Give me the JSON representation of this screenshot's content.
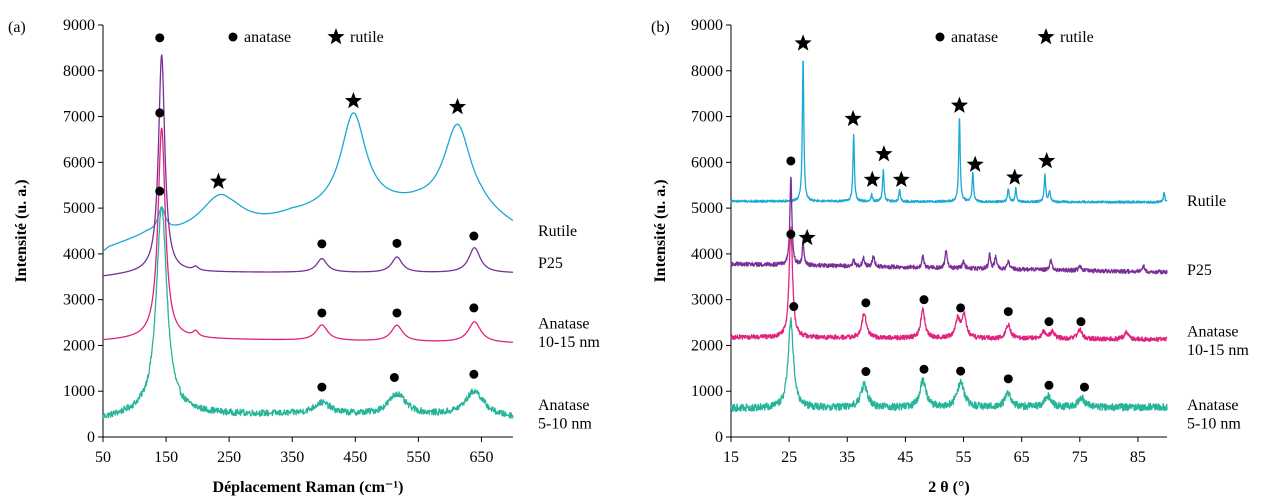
{
  "chart_data": [
    {
      "panel_label": "(a)",
      "type": "line",
      "xlabel": "Déplacement Raman (cm⁻¹)",
      "ylabel": "Intensité (u. a.)",
      "xlim": [
        50,
        700
      ],
      "ylim": [
        0,
        9000
      ],
      "xticks": [
        50,
        150,
        250,
        350,
        450,
        550,
        650
      ],
      "yticks": [
        0,
        1000,
        2000,
        3000,
        4000,
        5000,
        6000,
        7000,
        8000,
        9000
      ],
      "legend": {
        "position": "top",
        "entries": [
          {
            "marker": "circle",
            "label": "anatase"
          },
          {
            "marker": "star",
            "label": "rutile"
          }
        ]
      },
      "series": [
        {
          "name": "Rutile",
          "color": "#1aa8d6",
          "label_at_y": 4500,
          "baseline": [
            [
              50,
              4000
            ],
            [
              60,
              4100
            ],
            [
              120,
              4350
            ],
            [
              250,
              4250
            ],
            [
              350,
              4750
            ],
            [
              450,
              4950
            ],
            [
              550,
              5000
            ],
            [
              650,
              4850
            ],
            [
              700,
              4550
            ]
          ],
          "peaks": [
            [
              143,
              500,
              7
            ],
            [
              238,
              1000,
              42
            ],
            [
              447,
              2050,
              24
            ],
            [
              612,
              1870,
              26
            ]
          ]
        },
        {
          "name": "P25",
          "color": "#7a2e98",
          "label_at_y": 3800,
          "baseline": [
            [
              50,
              3500
            ],
            [
              120,
              3600
            ],
            [
              700,
              3580
            ]
          ],
          "peaks": [
            [
              143,
              4750,
              6
            ],
            [
              197,
              80,
              5
            ],
            [
              397,
              300,
              10
            ],
            [
              516,
              340,
              10
            ],
            [
              639,
              550,
              11
            ]
          ]
        },
        {
          "name": "Anatase 10-15 nm",
          "color": "#e0237e",
          "label_at_y": [
            2480,
            2080
          ],
          "baseline": [
            [
              50,
              2100
            ],
            [
              120,
              2150
            ],
            [
              700,
              2050
            ]
          ],
          "peaks": [
            [
              143,
              4600,
              7
            ],
            [
              197,
              120,
              5
            ],
            [
              397,
              340,
              11
            ],
            [
              516,
              350,
              11
            ],
            [
              639,
              450,
              12
            ]
          ]
        },
        {
          "name": "Anatase 5-10 nm",
          "color": "#26b59a",
          "label_at_y": [
            700,
            300
          ],
          "baseline": [
            [
              50,
              400
            ],
            [
              120,
              550
            ],
            [
              250,
              500
            ],
            [
              550,
              480
            ],
            [
              700,
              420
            ]
          ],
          "noise": 70,
          "peaks": [
            [
              143,
              4500,
              10
            ],
            [
              397,
              250,
              16
            ],
            [
              516,
              450,
              16
            ],
            [
              639,
              550,
              18
            ]
          ]
        }
      ],
      "markers": [
        {
          "kind": "circle",
          "x": 140,
          "y": 8720
        },
        {
          "kind": "circle",
          "x": 140,
          "y": 7080
        },
        {
          "kind": "circle",
          "x": 140,
          "y": 5370
        },
        {
          "kind": "circle",
          "x": 397,
          "y": 4220
        },
        {
          "kind": "circle",
          "x": 516,
          "y": 4230
        },
        {
          "kind": "circle",
          "x": 638,
          "y": 4390
        },
        {
          "kind": "circle",
          "x": 397,
          "y": 2710
        },
        {
          "kind": "circle",
          "x": 516,
          "y": 2710
        },
        {
          "kind": "circle",
          "x": 638,
          "y": 2820
        },
        {
          "kind": "circle",
          "x": 397,
          "y": 1090
        },
        {
          "kind": "circle",
          "x": 512,
          "y": 1300
        },
        {
          "kind": "circle",
          "x": 638,
          "y": 1370
        },
        {
          "kind": "star",
          "x": 233,
          "y": 5580
        },
        {
          "kind": "star",
          "x": 447,
          "y": 7340
        },
        {
          "kind": "star",
          "x": 612,
          "y": 7210
        }
      ]
    },
    {
      "panel_label": "(b)",
      "type": "line",
      "xlabel": "2 θ (°)",
      "ylabel": "Intensité (u. a.)",
      "xlim": [
        15,
        90
      ],
      "ylim": [
        0,
        9000
      ],
      "xticks": [
        15,
        25,
        35,
        45,
        55,
        65,
        75,
        85
      ],
      "yticks": [
        0,
        1000,
        2000,
        3000,
        4000,
        5000,
        6000,
        7000,
        8000,
        9000
      ],
      "legend": {
        "position": "top",
        "entries": [
          {
            "marker": "circle",
            "label": "anatase"
          },
          {
            "marker": "star",
            "label": "rutile"
          }
        ]
      },
      "series": [
        {
          "name": "Rutile",
          "color": "#1aa8d6",
          "label_at_y": 5150,
          "baseline": [
            [
              15,
              5150
            ],
            [
              90,
              5130
            ]
          ],
          "noise": 25,
          "peaks": [
            [
              27.4,
              3150,
              0.15
            ],
            [
              36.1,
              1450,
              0.15
            ],
            [
              39.2,
              150,
              0.15
            ],
            [
              41.2,
              700,
              0.15
            ],
            [
              44.0,
              250,
              0.15
            ],
            [
              54.3,
              1850,
              0.15
            ],
            [
              56.6,
              650,
              0.15
            ],
            [
              62.7,
              300,
              0.15
            ],
            [
              64.0,
              300,
              0.15
            ],
            [
              69.0,
              600,
              0.15
            ],
            [
              69.8,
              250,
              0.15
            ],
            [
              89.5,
              200,
              0.15
            ]
          ]
        },
        {
          "name": "P25",
          "color": "#7a2e98",
          "label_at_y": 3650,
          "baseline": [
            [
              15,
              3780
            ],
            [
              90,
              3600
            ]
          ],
          "noise": 45,
          "peaks": [
            [
              25.3,
              1950,
              0.2
            ],
            [
              27.4,
              550,
              0.15
            ],
            [
              36.1,
              130,
              0.2
            ],
            [
              37.8,
              200,
              0.2
            ],
            [
              39.5,
              250,
              0.2
            ],
            [
              48.0,
              250,
              0.2
            ],
            [
              52.0,
              400,
              0.2
            ],
            [
              55.0,
              150,
              0.2
            ],
            [
              59.5,
              300,
              0.2
            ],
            [
              60.5,
              250,
              0.2
            ],
            [
              62.7,
              200,
              0.2
            ],
            [
              70.0,
              250,
              0.2
            ],
            [
              75.0,
              120,
              0.2
            ],
            [
              86.0,
              130,
              0.2
            ]
          ]
        },
        {
          "name": "Anatase 10-15 nm",
          "color": "#e0237e",
          "label_at_y": [
            2300,
            1900
          ],
          "baseline": [
            [
              15,
              2180
            ],
            [
              90,
              2130
            ]
          ],
          "noise": 50,
          "peaks": [
            [
              25.3,
              2400,
              0.35
            ],
            [
              37.9,
              550,
              0.45
            ],
            [
              48.0,
              650,
              0.4
            ],
            [
              54.0,
              400,
              0.45
            ],
            [
              55.1,
              500,
              0.45
            ],
            [
              62.7,
              300,
              0.45
            ],
            [
              68.8,
              150,
              0.45
            ],
            [
              70.3,
              150,
              0.45
            ],
            [
              75.0,
              200,
              0.45
            ],
            [
              83.0,
              150,
              0.45
            ]
          ]
        },
        {
          "name": "Anatase 5-10 nm",
          "color": "#26b59a",
          "label_at_y": [
            700,
            300
          ],
          "baseline": [
            [
              15,
              630
            ],
            [
              90,
              650
            ]
          ],
          "noise": 80,
          "peaks": [
            [
              25.3,
              1900,
              0.55
            ],
            [
              37.9,
              500,
              0.7
            ],
            [
              48.0,
              580,
              0.65
            ],
            [
              54.5,
              570,
              0.7
            ],
            [
              62.7,
              300,
              0.7
            ],
            [
              69.5,
              250,
              0.7
            ],
            [
              75.3,
              200,
              0.7
            ]
          ]
        }
      ],
      "markers": [
        {
          "kind": "circle",
          "x": 25.3,
          "y": 6030
        },
        {
          "kind": "circle",
          "x": 25.3,
          "y": 4430
        },
        {
          "kind": "circle",
          "x": 25.8,
          "y": 2850
        },
        {
          "kind": "circle",
          "x": 38.2,
          "y": 2930
        },
        {
          "kind": "circle",
          "x": 48.2,
          "y": 3000
        },
        {
          "kind": "circle",
          "x": 54.5,
          "y": 2820
        },
        {
          "kind": "circle",
          "x": 62.7,
          "y": 2740
        },
        {
          "kind": "circle",
          "x": 69.7,
          "y": 2520
        },
        {
          "kind": "circle",
          "x": 75.2,
          "y": 2520
        },
        {
          "kind": "circle",
          "x": 38.2,
          "y": 1430
        },
        {
          "kind": "circle",
          "x": 48.2,
          "y": 1480
        },
        {
          "kind": "circle",
          "x": 54.5,
          "y": 1440
        },
        {
          "kind": "circle",
          "x": 62.7,
          "y": 1270
        },
        {
          "kind": "circle",
          "x": 69.7,
          "y": 1130
        },
        {
          "kind": "circle",
          "x": 75.8,
          "y": 1090
        },
        {
          "kind": "star",
          "x": 27.4,
          "y": 8600
        },
        {
          "kind": "star",
          "x": 36.0,
          "y": 6950
        },
        {
          "kind": "star",
          "x": 41.3,
          "y": 6180
        },
        {
          "kind": "star",
          "x": 39.3,
          "y": 5620
        },
        {
          "kind": "star",
          "x": 44.3,
          "y": 5620
        },
        {
          "kind": "star",
          "x": 54.3,
          "y": 7240
        },
        {
          "kind": "star",
          "x": 57.0,
          "y": 5950
        },
        {
          "kind": "star",
          "x": 63.8,
          "y": 5670
        },
        {
          "kind": "star",
          "x": 69.3,
          "y": 6030
        },
        {
          "kind": "star",
          "x": 28.1,
          "y": 4350
        }
      ]
    }
  ]
}
